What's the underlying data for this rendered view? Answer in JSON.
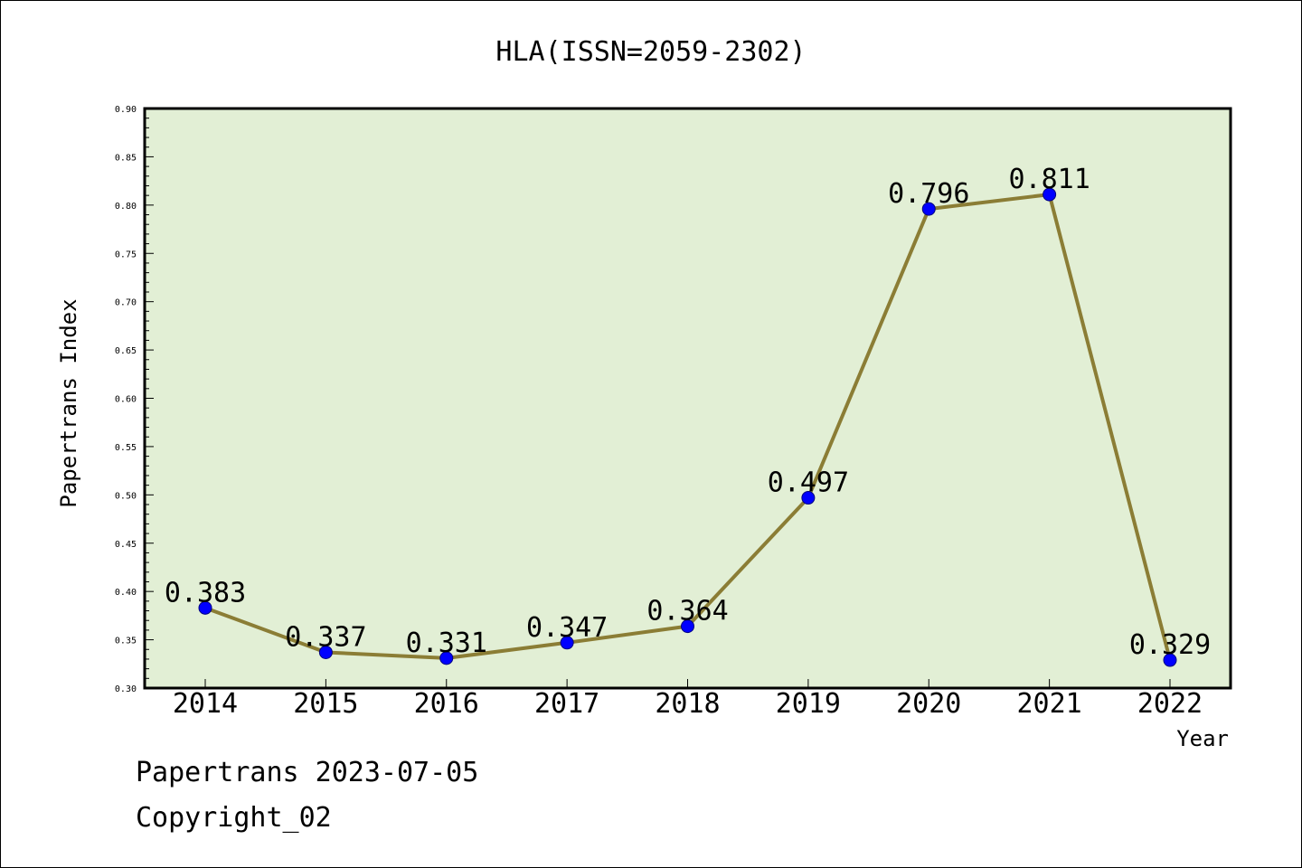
{
  "chart_data": {
    "type": "line",
    "title": "HLA(ISSN=2059-2302)",
    "xlabel": "Year",
    "ylabel": "Papertrans Index",
    "x": [
      "2014",
      "2015",
      "2016",
      "2017",
      "2018",
      "2019",
      "2020",
      "2021",
      "2022"
    ],
    "series": [
      {
        "values": [
          0.383,
          0.337,
          0.331,
          0.347,
          0.364,
          0.497,
          0.796,
          0.811,
          0.329
        ],
        "labels": [
          "0.383",
          "0.337",
          "0.331",
          "0.347",
          "0.364",
          "0.497",
          "0.796",
          "0.811",
          "0.329"
        ]
      }
    ],
    "ylim": [
      0.3,
      0.9
    ],
    "yticks": [
      "0.30",
      "0.35",
      "0.40",
      "0.45",
      "0.50",
      "0.55",
      "0.60",
      "0.65",
      "0.70",
      "0.75",
      "0.80",
      "0.85",
      "0.90"
    ],
    "grid": false,
    "colors": {
      "plot_background": "#e2efd5",
      "line": "#8b7d35",
      "marker": "#0000ff",
      "marker_edge": "#000080"
    }
  },
  "footer": {
    "line1": "Papertrans 2023-07-05",
    "line2": "Copyright_02"
  }
}
